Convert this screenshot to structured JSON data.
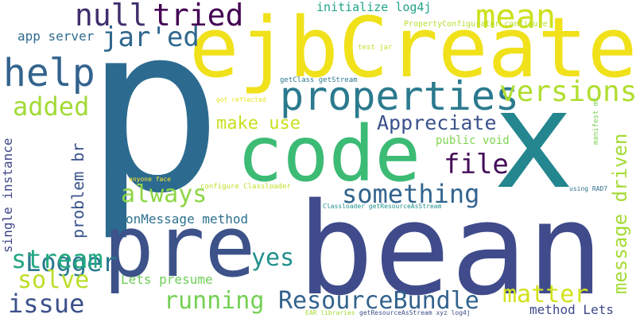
{
  "words": [
    {
      "text": "p",
      "color": "#2c6b8f"
    },
    {
      "text": "ejbCreate",
      "color": "#f0e11b"
    },
    {
      "text": "bean",
      "color": "#3f4b8a"
    },
    {
      "text": "code",
      "color": "#3cbb75"
    },
    {
      "text": "x",
      "color": "#24868e"
    },
    {
      "text": "pre",
      "color": "#3c5289"
    },
    {
      "text": "properties",
      "color": "#2b7a8e"
    },
    {
      "text": "help",
      "color": "#33638d"
    },
    {
      "text": "mean",
      "color": "#cde11d"
    },
    {
      "text": "null",
      "color": "#3f2f6e"
    },
    {
      "text": "tried",
      "color": "#440154"
    },
    {
      "text": "jar'ed",
      "color": "#31688e"
    },
    {
      "text": "versions",
      "color": "#b0dd2f"
    },
    {
      "text": "added",
      "color": "#a2da37"
    },
    {
      "text": "file",
      "color": "#440d59"
    },
    {
      "text": "always",
      "color": "#8ed645"
    },
    {
      "text": "something",
      "color": "#32648e"
    },
    {
      "text": "Appreciate",
      "color": "#3b528b"
    },
    {
      "text": "make use",
      "color": "#c7e020"
    },
    {
      "text": "Logger",
      "color": "#2a788e"
    },
    {
      "text": "stream",
      "color": "#23a983"
    },
    {
      "text": "solve",
      "color": "#bade28"
    },
    {
      "text": "issue",
      "color": "#3b518b"
    },
    {
      "text": "yes",
      "color": "#21918c"
    },
    {
      "text": "running",
      "color": "#75d054"
    },
    {
      "text": "ResourceBundle",
      "color": "#33638d"
    },
    {
      "text": "matter",
      "color": "#d2e21b"
    },
    {
      "text": "message driven",
      "color": "#a5db36"
    },
    {
      "text": "problem br",
      "color": "#3a538b"
    },
    {
      "text": "single instance",
      "color": "#404688"
    },
    {
      "text": "app server",
      "color": "#2f6c8e"
    },
    {
      "text": "onMessage method",
      "color": "#2d708e"
    },
    {
      "text": "Lets presume",
      "color": "#6ece58"
    },
    {
      "text": "method Lets",
      "color": "#3f4889"
    },
    {
      "text": "initialize log4j",
      "color": "#20a386"
    },
    {
      "text": "public void",
      "color": "#7fd34e"
    },
    {
      "text": "PropertyConfigurator configure",
      "color": "#b5de2b"
    },
    {
      "text": "test jar",
      "color": "#c2df23"
    },
    {
      "text": "getClass getStream",
      "color": "#2a788e"
    },
    {
      "text": "got reflected",
      "color": "#e5e419"
    },
    {
      "text": "manifest mf",
      "color": "#7ad151"
    },
    {
      "text": "anyone face",
      "color": "#fde725"
    },
    {
      "text": "configure Classloader",
      "color": "#bddf26"
    },
    {
      "text": "Classloader getResourceAsStream",
      "color": "#21908d"
    },
    {
      "text": "using RAD7",
      "color": "#2d718e"
    },
    {
      "text": "EAR libraries",
      "color": "#a8db34"
    },
    {
      "text": "getResourceAsStream xyz log4j",
      "color": "#3d4e8a"
    }
  ]
}
